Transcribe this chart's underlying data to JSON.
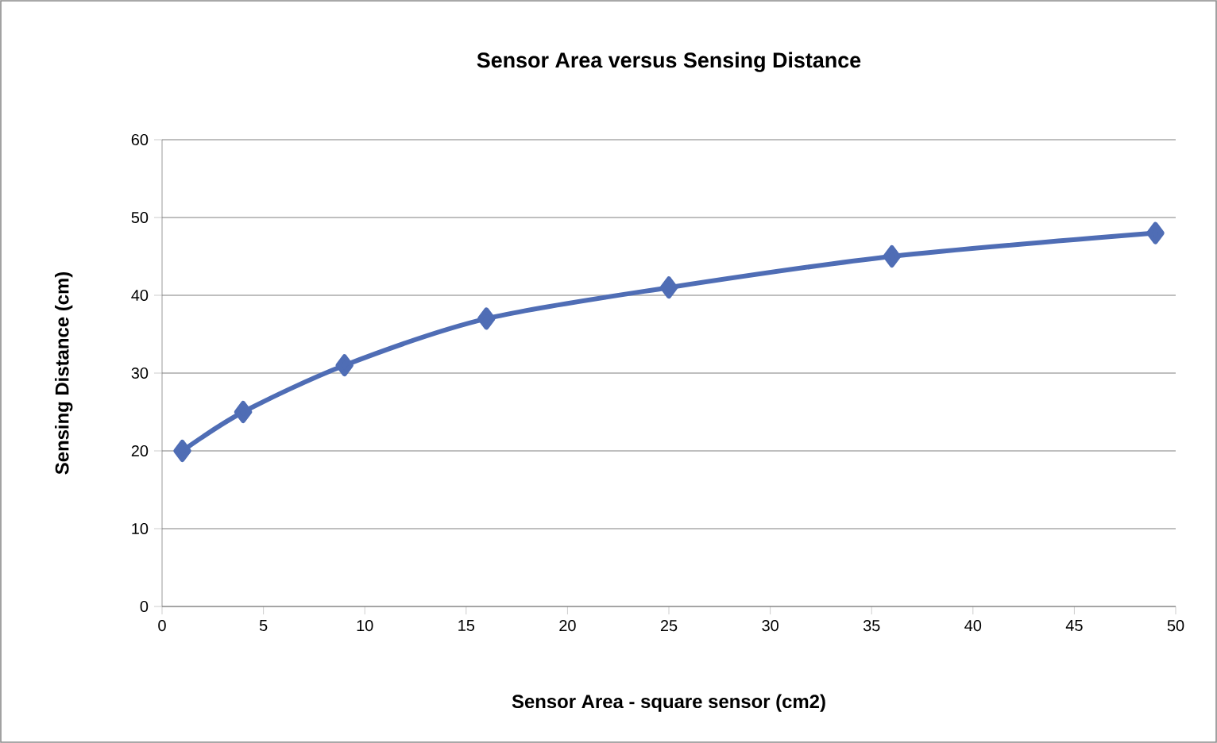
{
  "chart_data": {
    "type": "line",
    "title": "Sensor Area versus Sensing Distance",
    "xlabel": "Sensor Area - square sensor (cm2)",
    "ylabel": "Sensing Distance (cm)",
    "x": [
      1,
      4,
      9,
      16,
      25,
      36,
      49
    ],
    "series": [
      {
        "color": "#4f6db5",
        "values": [
          20,
          25,
          31,
          37,
          41,
          45,
          48
        ]
      }
    ],
    "xlim": [
      0,
      50
    ],
    "xticks": [
      0,
      5,
      10,
      15,
      20,
      25,
      30,
      35,
      40,
      45,
      50
    ],
    "ylim": [
      0,
      60
    ],
    "yticks": [
      0,
      10,
      20,
      30,
      40,
      50,
      60
    ],
    "grid": "y",
    "marker": "diamond",
    "line_style": "solid"
  }
}
